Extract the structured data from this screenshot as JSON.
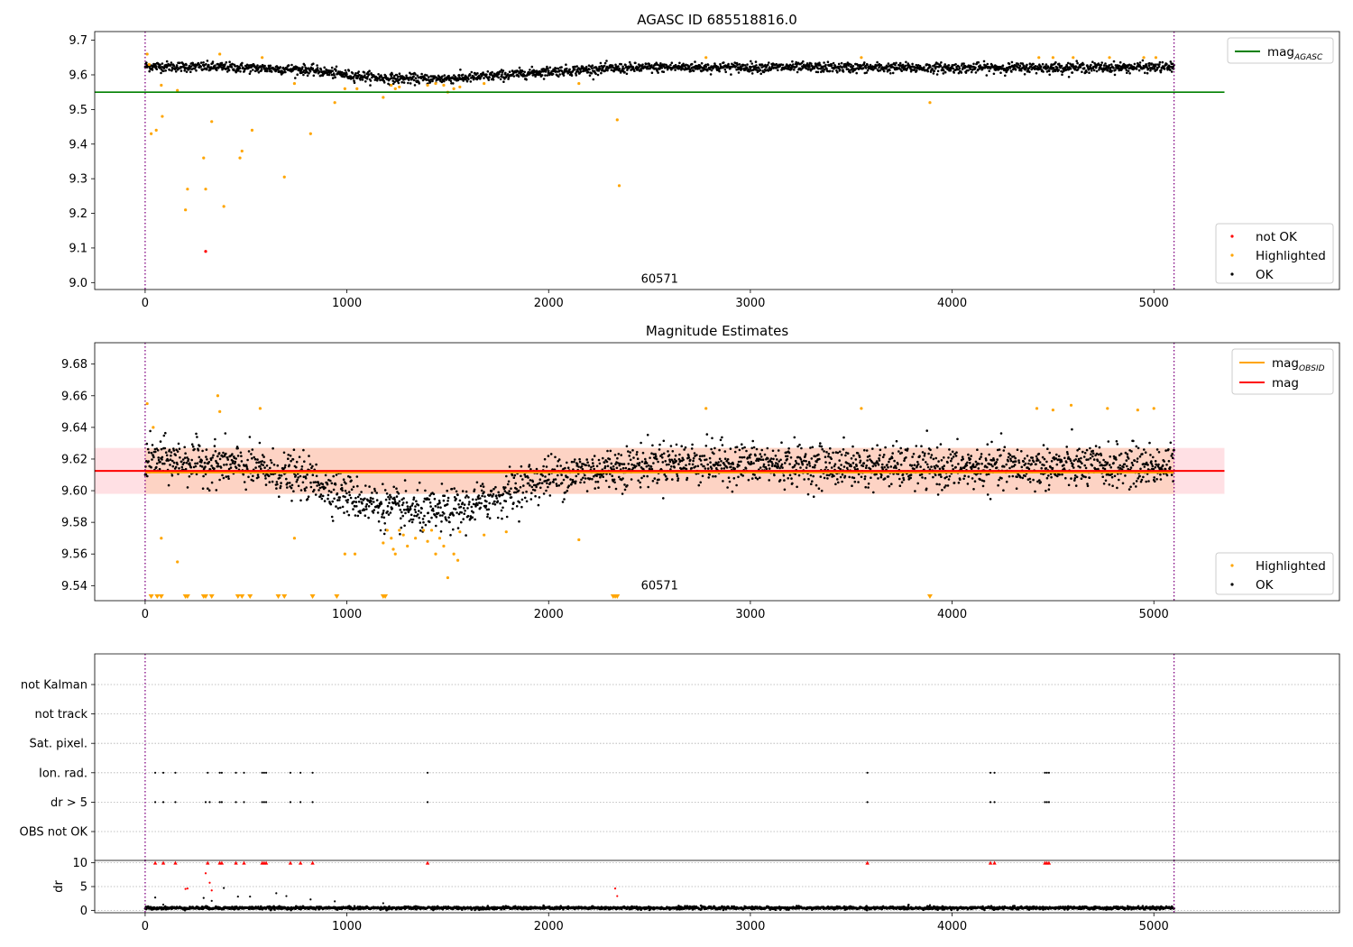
{
  "chart_data": [
    {
      "type": "scatter",
      "title": "AGASC ID 685518816.0",
      "xlim": [
        -250,
        5920
      ],
      "ylim": [
        8.98,
        9.725
      ],
      "xticks": [
        0,
        1000,
        2000,
        3000,
        4000,
        5000
      ],
      "yticks": [
        9.0,
        9.1,
        9.2,
        9.3,
        9.4,
        9.5,
        9.6,
        9.7
      ],
      "annotation": {
        "text": "60571",
        "x": 2550,
        "y": 9.0
      },
      "vlines": [
        0,
        5100
      ],
      "hline": {
        "name": "mag",
        "subscript": "AGASC",
        "y": 9.55,
        "x_end": 5350,
        "color": "#008000"
      },
      "legend_lines": [
        {
          "name": "mag",
          "subscript": "AGASC",
          "color": "#008000"
        }
      ],
      "legend_points": [
        {
          "name": "not OK",
          "color": "#ff0000"
        },
        {
          "name": "Highlighted",
          "color": "#ffa500"
        },
        {
          "name": "OK",
          "color": "#000000"
        }
      ],
      "series": [
        {
          "name": "Highlighted",
          "color": "#ffa500",
          "points": [
            [
              10,
              9.66
            ],
            [
              20,
              9.63
            ],
            [
              30,
              9.43
            ],
            [
              55,
              9.44
            ],
            [
              80,
              9.57
            ],
            [
              85,
              9.48
            ],
            [
              160,
              9.555
            ],
            [
              200,
              9.21
            ],
            [
              210,
              9.27
            ],
            [
              290,
              9.36
            ],
            [
              300,
              9.27
            ],
            [
              330,
              9.465
            ],
            [
              370,
              9.66
            ],
            [
              390,
              9.22
            ],
            [
              470,
              9.36
            ],
            [
              480,
              9.38
            ],
            [
              530,
              9.44
            ],
            [
              580,
              9.65
            ],
            [
              690,
              9.305
            ],
            [
              740,
              9.575
            ],
            [
              820,
              9.43
            ],
            [
              940,
              9.52
            ],
            [
              990,
              9.56
            ],
            [
              1050,
              9.56
            ],
            [
              1180,
              9.535
            ],
            [
              1220,
              9.57
            ],
            [
              1240,
              9.56
            ],
            [
              1260,
              9.565
            ],
            [
              1400,
              9.57
            ],
            [
              1440,
              9.575
            ],
            [
              1480,
              9.57
            ],
            [
              1500,
              9.55
            ],
            [
              1530,
              9.56
            ],
            [
              1560,
              9.565
            ],
            [
              1680,
              9.575
            ],
            [
              2150,
              9.575
            ],
            [
              2340,
              9.47
            ],
            [
              2350,
              9.28
            ],
            [
              2780,
              9.65
            ],
            [
              3550,
              9.65
            ],
            [
              3890,
              9.52
            ],
            [
              4430,
              9.65
            ],
            [
              4500,
              9.65
            ],
            [
              4600,
              9.65
            ],
            [
              4780,
              9.65
            ],
            [
              4950,
              9.65
            ],
            [
              5010,
              9.65
            ]
          ]
        },
        {
          "name": "not OK",
          "color": "#ff0000",
          "points": [
            [
              300,
              9.09
            ]
          ]
        }
      ],
      "ok_band": {
        "x_range": [
          0,
          5100
        ],
        "noise": 0.012,
        "baseline": [
          [
            0,
            9.625
          ],
          [
            400,
            9.622
          ],
          [
            800,
            9.615
          ],
          [
            1000,
            9.6
          ],
          [
            1200,
            9.59
          ],
          [
            1400,
            9.588
          ],
          [
            1600,
            9.592
          ],
          [
            1800,
            9.6
          ],
          [
            2000,
            9.61
          ],
          [
            2300,
            9.618
          ],
          [
            2600,
            9.622
          ],
          [
            3000,
            9.622
          ],
          [
            4000,
            9.62
          ],
          [
            5100,
            9.622
          ]
        ]
      }
    },
    {
      "type": "scatter",
      "title": "Magnitude Estimates",
      "xlim": [
        -250,
        5920
      ],
      "ylim": [
        9.5305,
        9.6935
      ],
      "xticks": [
        0,
        1000,
        2000,
        3000,
        4000,
        5000
      ],
      "yticks": [
        9.54,
        9.56,
        9.58,
        9.6,
        9.62,
        9.64,
        9.66,
        9.68
      ],
      "annotation": {
        "text": "60571",
        "x": 2550,
        "y": 9.5375
      },
      "vlines": [
        0,
        5100
      ],
      "band_outer": {
        "y": [
          9.598,
          9.627
        ],
        "x": [
          -250,
          5350
        ],
        "color": "#ffe0e4"
      },
      "band_inner": {
        "y": [
          9.598,
          9.627
        ],
        "x": [
          0,
          5100
        ],
        "color": "#fdd3c4"
      },
      "lines": [
        {
          "name": "mag",
          "subscript": "OBSID",
          "color": "#ffa500",
          "y": 9.6115,
          "x": [
            0,
            5100
          ]
        },
        {
          "name": "mag",
          "color": "#ff0000",
          "y": 9.6125,
          "x": [
            -250,
            5350
          ]
        }
      ],
      "legend_points": [
        {
          "name": "Highlighted",
          "color": "#ffa500"
        },
        {
          "name": "OK",
          "color": "#000000"
        }
      ],
      "series": [
        {
          "name": "Highlighted",
          "color": "#ffa500",
          "points": [
            [
              10,
              9.655
            ],
            [
              40,
              9.64
            ],
            [
              80,
              9.57
            ],
            [
              160,
              9.555
            ],
            [
              360,
              9.66
            ],
            [
              370,
              9.65
            ],
            [
              570,
              9.652
            ],
            [
              740,
              9.57
            ],
            [
              990,
              9.56
            ],
            [
              1040,
              9.56
            ],
            [
              1180,
              9.567
            ],
            [
              1200,
              9.575
            ],
            [
              1220,
              9.57
            ],
            [
              1230,
              9.563
            ],
            [
              1240,
              9.56
            ],
            [
              1260,
              9.575
            ],
            [
              1280,
              9.572
            ],
            [
              1300,
              9.565
            ],
            [
              1340,
              9.57
            ],
            [
              1380,
              9.575
            ],
            [
              1400,
              9.568
            ],
            [
              1420,
              9.575
            ],
            [
              1440,
              9.56
            ],
            [
              1460,
              9.57
            ],
            [
              1480,
              9.565
            ],
            [
              1500,
              9.545
            ],
            [
              1530,
              9.56
            ],
            [
              1550,
              9.556
            ],
            [
              1560,
              9.574
            ],
            [
              1680,
              9.572
            ],
            [
              1790,
              9.574
            ],
            [
              2150,
              9.569
            ],
            [
              2780,
              9.652
            ],
            [
              3550,
              9.652
            ],
            [
              4420,
              9.652
            ],
            [
              4500,
              9.651
            ],
            [
              4590,
              9.654
            ],
            [
              4770,
              9.652
            ],
            [
              4920,
              9.651
            ],
            [
              5000,
              9.652
            ]
          ]
        }
      ],
      "clipped_markers": {
        "color": "#ffa500",
        "x": [
          30,
          60,
          80,
          200,
          210,
          290,
          300,
          330,
          460,
          480,
          520,
          660,
          690,
          830,
          950,
          1180,
          1190,
          2320,
          2330,
          2340,
          3890
        ]
      },
      "ok_band": {
        "x_range": [
          0,
          5100
        ],
        "noise": 0.011,
        "baseline": [
          [
            0,
            9.62
          ],
          [
            400,
            9.617
          ],
          [
            800,
            9.608
          ],
          [
            1000,
            9.597
          ],
          [
            1200,
            9.589
          ],
          [
            1400,
            9.586
          ],
          [
            1600,
            9.589
          ],
          [
            1800,
            9.6
          ],
          [
            2000,
            9.609
          ],
          [
            2300,
            9.614
          ],
          [
            2600,
            9.618
          ],
          [
            3000,
            9.617
          ],
          [
            4000,
            9.614
          ],
          [
            5100,
            9.616
          ]
        ]
      }
    },
    {
      "type": "scatter",
      "xlim": [
        -250,
        5920
      ],
      "vlines": [
        0,
        5100
      ],
      "categories": [
        "not Kalman",
        "not track",
        "Sat. pixel.",
        "Ion. rad.",
        "dr > 5",
        "OBS not OK"
      ],
      "flag_points": {
        "Ion. rad.": [
          50,
          90,
          150,
          310,
          370,
          380,
          450,
          490,
          580,
          590,
          600,
          720,
          770,
          830,
          1400,
          3580,
          4190,
          4210,
          4460,
          4470,
          4480
        ],
        "dr > 5": [
          50,
          90,
          150,
          300,
          320,
          370,
          380,
          450,
          490,
          580,
          590,
          600,
          720,
          770,
          830,
          1400,
          3580,
          4190,
          4210,
          4460,
          4470,
          4480
        ]
      }
    },
    {
      "type": "scatter",
      "ylabel": "dr",
      "xlim": [
        -250,
        5920
      ],
      "ylim": [
        -0.5,
        10.5
      ],
      "xticks": [
        0,
        1000,
        2000,
        3000,
        4000,
        5000
      ],
      "yticks": [
        0,
        5,
        10
      ],
      "vlines": [
        0,
        5100
      ],
      "capped_markers": {
        "color": "#ff0000",
        "y": 10,
        "x": [
          50,
          90,
          150,
          310,
          370,
          380,
          450,
          490,
          580,
          590,
          600,
          720,
          770,
          830,
          1400,
          3580,
          4190,
          4210,
          4460,
          4470,
          4480
        ]
      },
      "series": [
        {
          "name": "not OK",
          "color": "#ff0000",
          "points": [
            [
              200,
              4.5
            ],
            [
              210,
              4.6
            ],
            [
              300,
              7.8
            ],
            [
              320,
              5.8
            ],
            [
              330,
              4.2
            ],
            [
              2330,
              4.6
            ],
            [
              2340,
              3.0
            ]
          ]
        },
        {
          "name": "OK",
          "color": "#000000",
          "points": [
            [
              50,
              2.7
            ],
            [
              90,
              1.2
            ],
            [
              290,
              2.6
            ],
            [
              330,
              2.0
            ],
            [
              390,
              4.7
            ],
            [
              460,
              2.9
            ],
            [
              520,
              2.9
            ],
            [
              650,
              3.6
            ],
            [
              700,
              3.0
            ],
            [
              820,
              2.3
            ],
            [
              940,
              1.9
            ],
            [
              1180,
              1.5
            ],
            [
              3890,
              1.1
            ]
          ]
        }
      ],
      "ok_band": {
        "x_range": [
          0,
          5100
        ],
        "baseline_value": 0.5,
        "noise": 0.3
      }
    }
  ]
}
